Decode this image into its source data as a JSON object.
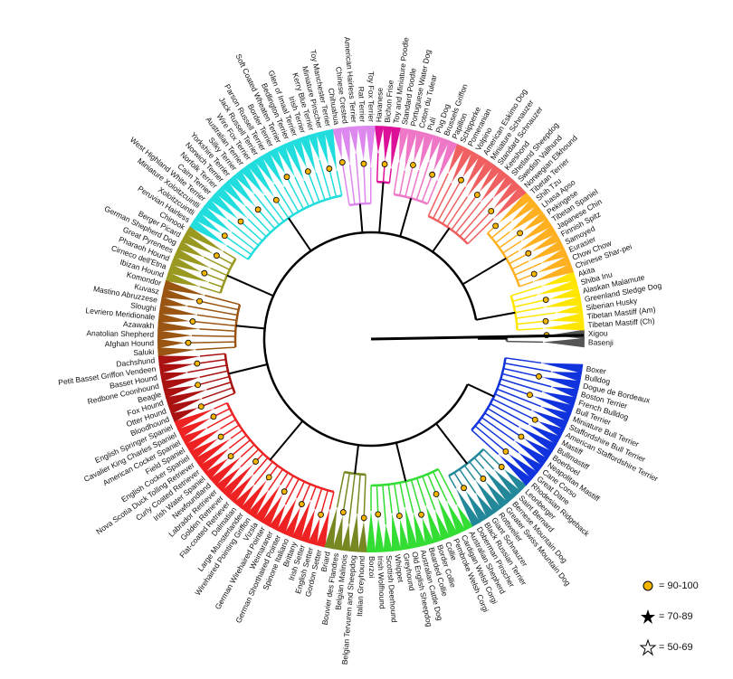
{
  "clades": [
    {
      "color": "#555555",
      "breeds": [
        "Basenji",
        "Xigou"
      ]
    },
    {
      "color": "#ffe600",
      "breeds": [
        "Tibetan Mastiff (Ch)",
        "Tibetan Mastiff (Am)",
        "Siberian Husky",
        "Greenland Sledge Dog",
        "Alaskan Malamute",
        "Shiba Inu",
        "Akita"
      ]
    },
    {
      "color": "#ffb020",
      "breeds": [
        "Chinese Shar-pei",
        "Chow Chow",
        "Eurasier",
        "Samoyed",
        "Finnish Spitz",
        "Japanese Chin",
        "Tibetan Spaniel",
        "Pekingese",
        "Lhasa Apso",
        "Shih Tzu",
        "Tibetan Terrier"
      ]
    },
    {
      "color": "#f06060",
      "breeds": [
        "Norwegian Elkhound",
        "Swedish Vallhund",
        "Shetland Sheepdog",
        "Keeshond",
        "Standard Schnauzer",
        "Miniature Schnauzer",
        "American Eskimo Dog",
        "Volpino",
        "Pomeranian",
        "Schipperke"
      ]
    },
    {
      "color": "#ee77c8",
      "breeds": [
        "Papillon",
        "Brussels Griffon",
        "Pug Dog",
        "Pulí",
        "Coton du Tulear",
        "Portuguese Water Dog",
        "Standard Poodle"
      ]
    },
    {
      "color": "#dd1199",
      "breeds": [
        "Toy and Miniature Poodle",
        "Bichon Frise",
        "Havanese"
      ]
    },
    {
      "color": "#dd88ee",
      "breeds": [
        "Toy Fox Terrier",
        "Rat Terrier",
        "American Hairless Terrier",
        "Chinese Crested",
        "Chihuahua"
      ]
    },
    {
      "color": "#22dddd",
      "breeds": [
        "Toy Manchester Terrier",
        "Miniature Pinscher",
        "Kerry Blue Terrier",
        "Irish Terrier",
        "Glen of Imaal Terrier",
        "Bedlington Terrier",
        "Soft Coated Wheaten Terrier",
        "Border Terrier",
        "Parson Russell Terrier",
        "Jack Russell Terrier",
        "Wire Fox Terrier",
        "Australian Terrier",
        "Silky Terrier",
        "Yorkshire Terrier",
        "Norwich Terrier",
        "Norfolk Terrier",
        "Cairn Terrier",
        "West Highland White Terrier",
        "Miniature Xoloitzcuintli",
        "Xoloitzcuintli",
        "Peruvian Hairless"
      ]
    },
    {
      "color": "#999922",
      "breeds": [
        "Chinook",
        "Berger Picard",
        "German Shepherd Dog",
        "Great Pyrenees",
        "Pharaoh Hound",
        "Cirneco dell'Etna",
        "Ibizan Hound"
      ]
    },
    {
      "color": "#995511",
      "breeds": [
        "Komondor",
        "Kuvasz",
        "Mastino Abruzzese",
        "Sloughi",
        "Levriero Meridionale",
        "Azawakh",
        "Anatolian Shepherd",
        "Afghan Hound",
        "Saluki"
      ]
    },
    {
      "color": "#aa1111",
      "breeds": [
        "Dachshund",
        "Petit Basset Griffon Vendeen",
        "Basset Hound",
        "Redbone Coonhound",
        "Beagle",
        "Fox Hound",
        "Otter Hound",
        "Bloodhound"
      ]
    },
    {
      "color": "#ee2222",
      "breeds": [
        "English Springer Spaniel",
        "Cavalier King Charles Spaniel",
        "American Cocker Spaniel",
        "Field Spaniel",
        "English Cocker Spaniel",
        "Nova Scotia Duck Tolling Retriever",
        "Curly Coated Retriever",
        "Irish Water Spaniel",
        "Newfoundland",
        "Labrador Retriever",
        "Golden Retriever",
        "Flat-coated Retriever",
        "Dalmatian",
        "Large Munsterlander",
        "Wirehaired Pointing Griffon",
        "Vizsla",
        "German Wirehaired Pointer",
        "Weimaraner",
        "German Shorthaired Pointer",
        "Spinone Italiano",
        "Brittany",
        "Irish Setter",
        "English Setter",
        "Gordon Setter"
      ]
    },
    {
      "color": "#778822",
      "breeds": [
        "Briard",
        "Bouvier des Flandres",
        "Belgian Malinois",
        "Belgian Tervuren and Sheepdog",
        "Italian Greyhound"
      ]
    },
    {
      "color": "#33dd33",
      "breeds": [
        "Borzoi",
        "Irish Wolfhound",
        "Scottish Deerhound",
        "Whippet",
        "Greyhound",
        "Old English Sheepdog",
        "Australian Cattle Dog",
        "Bearded Collie",
        "Border Collie",
        "Collie",
        "Pembroke Welsh Corgi",
        "Cardigan Welsh Corgi",
        "Australian Shepherd"
      ]
    },
    {
      "color": "#228899",
      "breeds": [
        "Doberman Pinscher",
        "Black Russian Terrier",
        "Giant Schnauzer",
        "Rottweiler",
        "Greater Swiss Mountain Dog",
        "Bernese Mountain Dog",
        "Saint Bernard",
        "Leonberger"
      ]
    },
    {
      "color": "#1133dd",
      "breeds": [
        "Rhodesian Ridgeback",
        "Great Dane",
        "Cane Corso",
        "Neapolitan Mastiff",
        "Boerboel",
        "Bullmastiff",
        "Mastiff",
        "American Staffordshire Terrier",
        "Staffordshire Bull Terrier",
        "Miniature Bull Terrier",
        "Bull Terrier",
        "French Bulldog",
        "Boston Terrier",
        "Dogue de Bordeaux",
        "Bulldog",
        "Boxer"
      ]
    }
  ],
  "legend": [
    {
      "label": "= 90-100"
    },
    {
      "label": "= 70-89"
    },
    {
      "label": "= 50-69"
    }
  ]
}
